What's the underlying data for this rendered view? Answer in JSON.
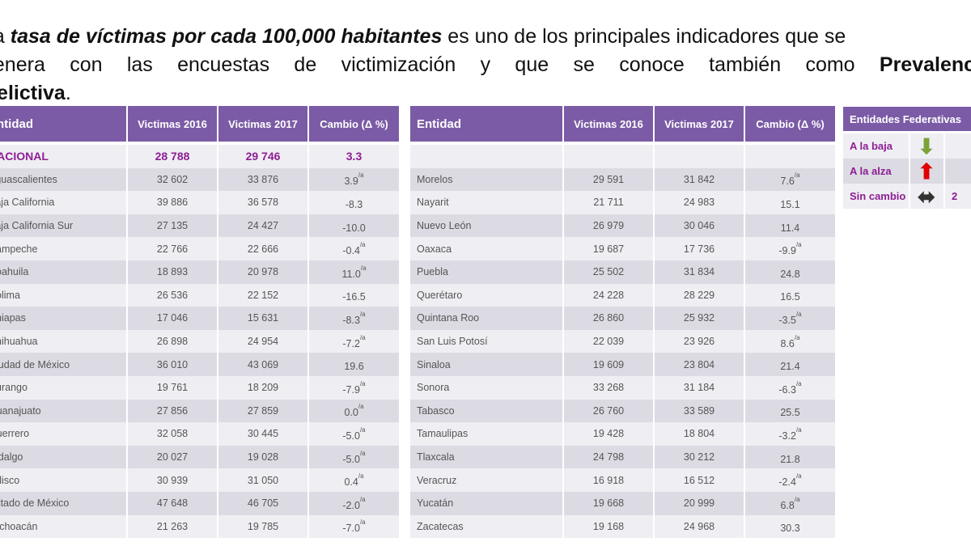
{
  "intro": {
    "line1_pre": "La ",
    "line1_bold": "tasa de víctimas por cada 100,000 habitantes",
    "line1_post": " es uno de los principales indicadores que se",
    "line2_words": [
      "genera",
      "con",
      "las",
      "encuestas",
      "de",
      "victimización",
      "y",
      "que",
      "se",
      "conoce",
      "también",
      "como"
    ],
    "line2_bold": "Prevalencia",
    "line3_bold": "Delictiva",
    "line3_post": "."
  },
  "table": {
    "headers": {
      "entity": "Entidad",
      "v2016": "Victimas 2016",
      "v2017": "Victimas 2017",
      "change": "Cambio (Δ %)"
    },
    "national": {
      "name": "NACIONAL",
      "v2016": "28 788",
      "v2017": "29 746",
      "change": "3.3"
    },
    "left_rows": [
      {
        "name": "Aguascalientes",
        "v2016": "32 602",
        "v2017": "33 876",
        "change": "3.9",
        "note": "/a"
      },
      {
        "name": "Baja California",
        "v2016": "39 886",
        "v2017": "36 578",
        "change": "-8.3",
        "note": ""
      },
      {
        "name": "Baja California Sur",
        "v2016": "27 135",
        "v2017": "24 427",
        "change": "-10.0",
        "note": ""
      },
      {
        "name": "Campeche",
        "v2016": "22 766",
        "v2017": "22 666",
        "change": "-0.4",
        "note": "/a"
      },
      {
        "name": "Coahuila",
        "v2016": "18 893",
        "v2017": "20 978",
        "change": "11.0",
        "note": "/a"
      },
      {
        "name": "Colima",
        "v2016": "26 536",
        "v2017": "22 152",
        "change": "-16.5",
        "note": ""
      },
      {
        "name": "Chiapas",
        "v2016": "17 046",
        "v2017": "15 631",
        "change": "-8.3",
        "note": "/a"
      },
      {
        "name": "Chihuahua",
        "v2016": "26 898",
        "v2017": "24 954",
        "change": "-7.2",
        "note": "/a"
      },
      {
        "name": "Ciudad de México",
        "v2016": "36 010",
        "v2017": "43 069",
        "change": "19.6",
        "note": ""
      },
      {
        "name": "Durango",
        "v2016": "19 761",
        "v2017": "18 209",
        "change": "-7.9",
        "note": "/a"
      },
      {
        "name": "Guanajuato",
        "v2016": "27 856",
        "v2017": "27 859",
        "change": "0.0",
        "note": "/a"
      },
      {
        "name": "Guerrero",
        "v2016": "32 058",
        "v2017": "30 445",
        "change": "-5.0",
        "note": "/a"
      },
      {
        "name": "Hidalgo",
        "v2016": "20 027",
        "v2017": "19 028",
        "change": "-5.0",
        "note": "/a"
      },
      {
        "name": "Jalisco",
        "v2016": "30 939",
        "v2017": "31 050",
        "change": "0.4",
        "note": "/a"
      },
      {
        "name": "Estado de México",
        "v2016": "47 648",
        "v2017": "46 705",
        "change": "-2.0",
        "note": "/a"
      },
      {
        "name": "Michoacán",
        "v2016": "21 263",
        "v2017": "19 785",
        "change": "-7.0",
        "note": "/a"
      }
    ],
    "right_rows": [
      {
        "name": "Morelos",
        "v2016": "29 591",
        "v2017": "31 842",
        "change": "7.6",
        "note": "/a"
      },
      {
        "name": "Nayarit",
        "v2016": "21 711",
        "v2017": "24 983",
        "change": "15.1",
        "note": ""
      },
      {
        "name": "Nuevo León",
        "v2016": "26 979",
        "v2017": "30 046",
        "change": "11.4",
        "note": ""
      },
      {
        "name": "Oaxaca",
        "v2016": "19 687",
        "v2017": "17 736",
        "change": "-9.9",
        "note": "/a"
      },
      {
        "name": "Puebla",
        "v2016": "25 502",
        "v2017": "31 834",
        "change": "24.8",
        "note": ""
      },
      {
        "name": "Querétaro",
        "v2016": "24 228",
        "v2017": "28 229",
        "change": "16.5",
        "note": ""
      },
      {
        "name": "Quintana Roo",
        "v2016": "26 860",
        "v2017": "25 932",
        "change": "-3.5",
        "note": "/a"
      },
      {
        "name": "San Luis Potosí",
        "v2016": "22 039",
        "v2017": "23 926",
        "change": "8.6",
        "note": "/a"
      },
      {
        "name": "Sinaloa",
        "v2016": "19 609",
        "v2017": "23 804",
        "change": "21.4",
        "note": ""
      },
      {
        "name": "Sonora",
        "v2016": "33 268",
        "v2017": "31 184",
        "change": "-6.3",
        "note": "/a"
      },
      {
        "name": "Tabasco",
        "v2016": "26 760",
        "v2017": "33 589",
        "change": "25.5",
        "note": ""
      },
      {
        "name": "Tamaulipas",
        "v2016": "19 428",
        "v2017": "18 804",
        "change": "-3.2",
        "note": "/a"
      },
      {
        "name": "Tlaxcala",
        "v2016": "24 798",
        "v2017": "30 212",
        "change": "21.8",
        "note": ""
      },
      {
        "name": "Veracruz",
        "v2016": "16 918",
        "v2017": "16 512",
        "change": "-2.4",
        "note": "/a"
      },
      {
        "name": "Yucatán",
        "v2016": "19 668",
        "v2017": "20 999",
        "change": "6.8",
        "note": "/a"
      },
      {
        "name": "Zacatecas",
        "v2016": "19 168",
        "v2017": "24 968",
        "change": "30.3",
        "note": ""
      }
    ]
  },
  "legend": {
    "title": "Entidades Federativas",
    "rows": [
      {
        "label": "A la baja",
        "icon": "arrow-down-icon",
        "glyph": "⬇",
        "color": "#7aa33a",
        "count": ""
      },
      {
        "label": "A la alza",
        "icon": "arrow-up-icon",
        "glyph": "⬆",
        "color": "#e00000",
        "count": ""
      },
      {
        "label": "Sin cambio",
        "icon": "arrow-left-right-icon",
        "glyph": "⬌",
        "color": "#333333",
        "count": "2"
      }
    ]
  }
}
